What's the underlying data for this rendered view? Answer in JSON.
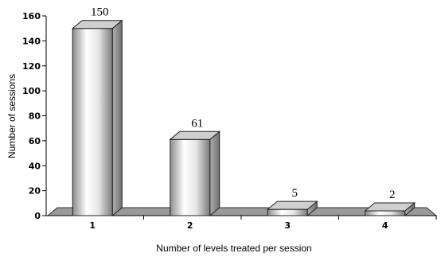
{
  "chart_data": {
    "type": "bar",
    "categories": [
      "1",
      "2",
      "3",
      "4"
    ],
    "values": [
      150,
      61,
      5,
      2
    ],
    "data_labels": [
      "150",
      "61",
      "5",
      "2"
    ],
    "title": "",
    "xlabel": "Number of levels treated per session",
    "ylabel": "Number of sessions",
    "ylim": [
      0,
      160
    ],
    "yticks": [
      0,
      20,
      40,
      60,
      80,
      100,
      120,
      140,
      160
    ],
    "grid": false,
    "bar_style": "3d-cylinder-gradient",
    "bar_color": "#d9d9d9",
    "floor_color": "#9a9a9a"
  }
}
